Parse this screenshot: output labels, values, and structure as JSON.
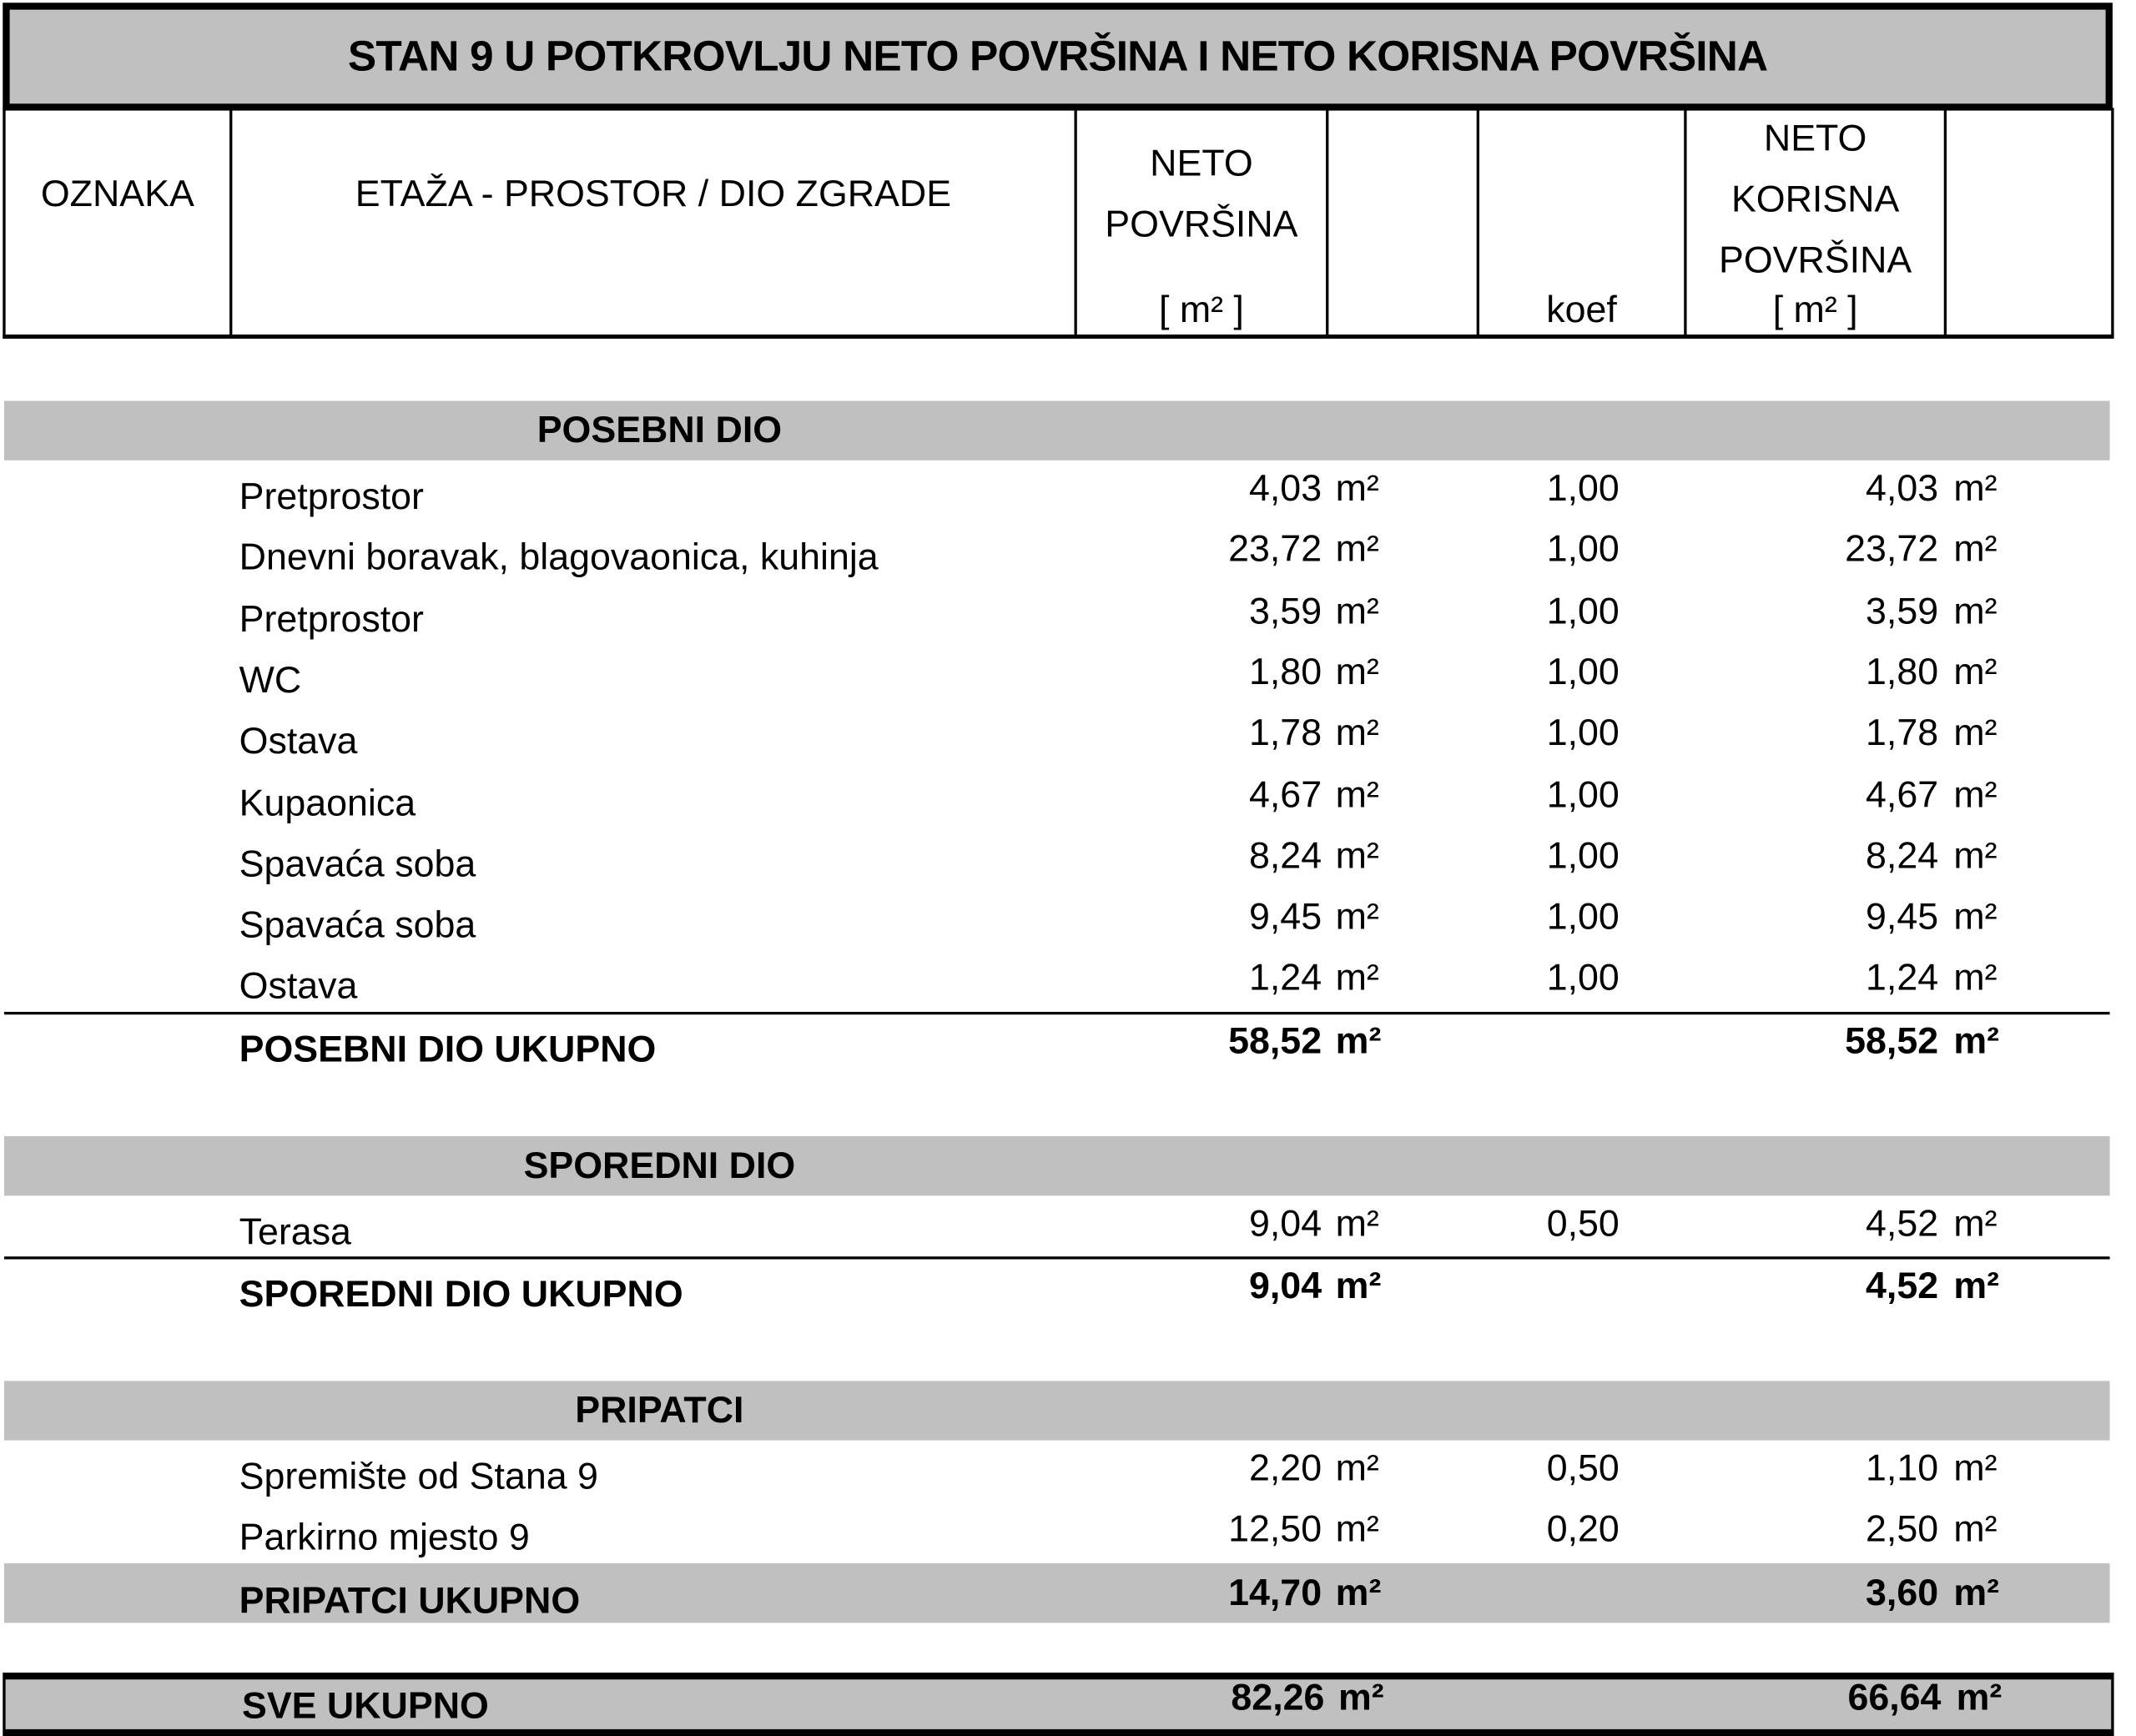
{
  "title": "STAN 9 U POTKROVLJU NETO POVRŠINA I NETO KORISNA POVRŠINA",
  "header": {
    "oznaka": "OZNAKA",
    "etaza": "ETAŽA - PROSTOR / DIO ZGRADE",
    "neto_l1": "NETO",
    "neto_l2": "POVRŠINA",
    "neto_unit": "[ m² ]",
    "koef": "koef",
    "korisna_l1": "NETO",
    "korisna_l2": "KORISNA",
    "korisna_l3": "POVRŠINA",
    "korisna_unit": "[ m² ]"
  },
  "unit": "m²",
  "sections": [
    {
      "label": "POSEBNI DIO",
      "rows": [
        {
          "name": "Pretprostor",
          "neto": "4,03",
          "koef": "1,00",
          "korisna": "4,03"
        },
        {
          "name": "Dnevni boravak, blagovaonica, kuhinja",
          "neto": "23,72",
          "koef": "1,00",
          "korisna": "23,72"
        },
        {
          "name": "Pretprostor",
          "neto": "3,59",
          "koef": "1,00",
          "korisna": "3,59"
        },
        {
          "name": "WC",
          "neto": "1,80",
          "koef": "1,00",
          "korisna": "1,80"
        },
        {
          "name": "Ostava",
          "neto": "1,78",
          "koef": "1,00",
          "korisna": "1,78"
        },
        {
          "name": "Kupaonica",
          "neto": "4,67",
          "koef": "1,00",
          "korisna": "4,67"
        },
        {
          "name": "Spavaća soba",
          "neto": "8,24",
          "koef": "1,00",
          "korisna": "8,24"
        },
        {
          "name": "Spavaća soba",
          "neto": "9,45",
          "koef": "1,00",
          "korisna": "9,45"
        },
        {
          "name": "Ostava",
          "neto": "1,24",
          "koef": "1,00",
          "korisna": "1,24"
        }
      ],
      "total": {
        "name": "POSEBNI DIO UKUPNO",
        "neto": "58,52",
        "korisna": "58,52"
      }
    },
    {
      "label": "SPOREDNI DIO",
      "rows": [
        {
          "name": "Terasa",
          "neto": "9,04",
          "koef": "0,50",
          "korisna": "4,52"
        }
      ],
      "total": {
        "name": "SPOREDNI DIO UKUPNO",
        "neto": "9,04",
        "korisna": "4,52"
      }
    },
    {
      "label": "PRIPATCI",
      "rows": [
        {
          "name": "Spremište od Stana 9",
          "neto": "2,20",
          "koef": "0,50",
          "korisna": "1,10"
        },
        {
          "name": "Parkirno mjesto 9",
          "neto": "12,50",
          "koef": "0,20",
          "korisna": "2,50"
        }
      ],
      "total": {
        "name": "PRIPATCI UKUPNO",
        "neto": "14,70",
        "korisna": "3,60"
      }
    }
  ],
  "grand_total": {
    "name": "SVE UKUPNO",
    "neto": "82,26",
    "korisna": "66,64"
  }
}
